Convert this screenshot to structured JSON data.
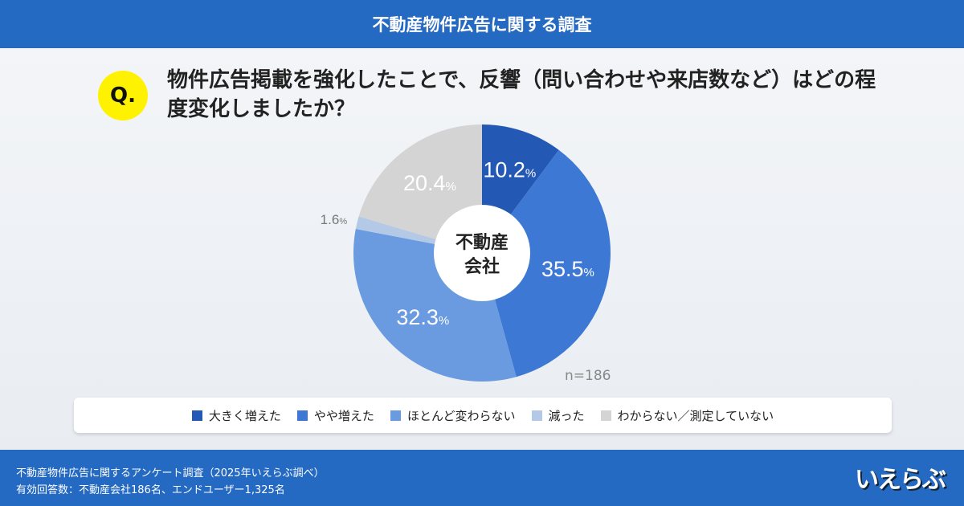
{
  "header": {
    "title": "不動産物件広告に関する調査"
  },
  "question": {
    "badge": "Q.",
    "text": "物件広告掲載を強化したことで、反響（問い合わせや来店数など）はどの程度変化しましたか？"
  },
  "chart_data": {
    "type": "pie",
    "center_label": "不動産会社",
    "n_label": "n=186",
    "categories": [
      "大きく増えた",
      "やや増えた",
      "ほとんど変わらない",
      "減った",
      "わからない／測定していない"
    ],
    "values": [
      10.2,
      35.5,
      32.3,
      1.6,
      20.4
    ],
    "colors": [
      "#2458b5",
      "#3d79d4",
      "#6a9be0",
      "#b4c9e6",
      "#d4d4d4"
    ],
    "unit": "%",
    "legend": "bottom"
  },
  "footer": {
    "line1": "不動産物件広告に関するアンケート調査（2025年いえらぶ調べ）",
    "line2": "有効回答数：不動産会社186名、エンドユーザー1,325名",
    "logo": "いえらぶ"
  }
}
